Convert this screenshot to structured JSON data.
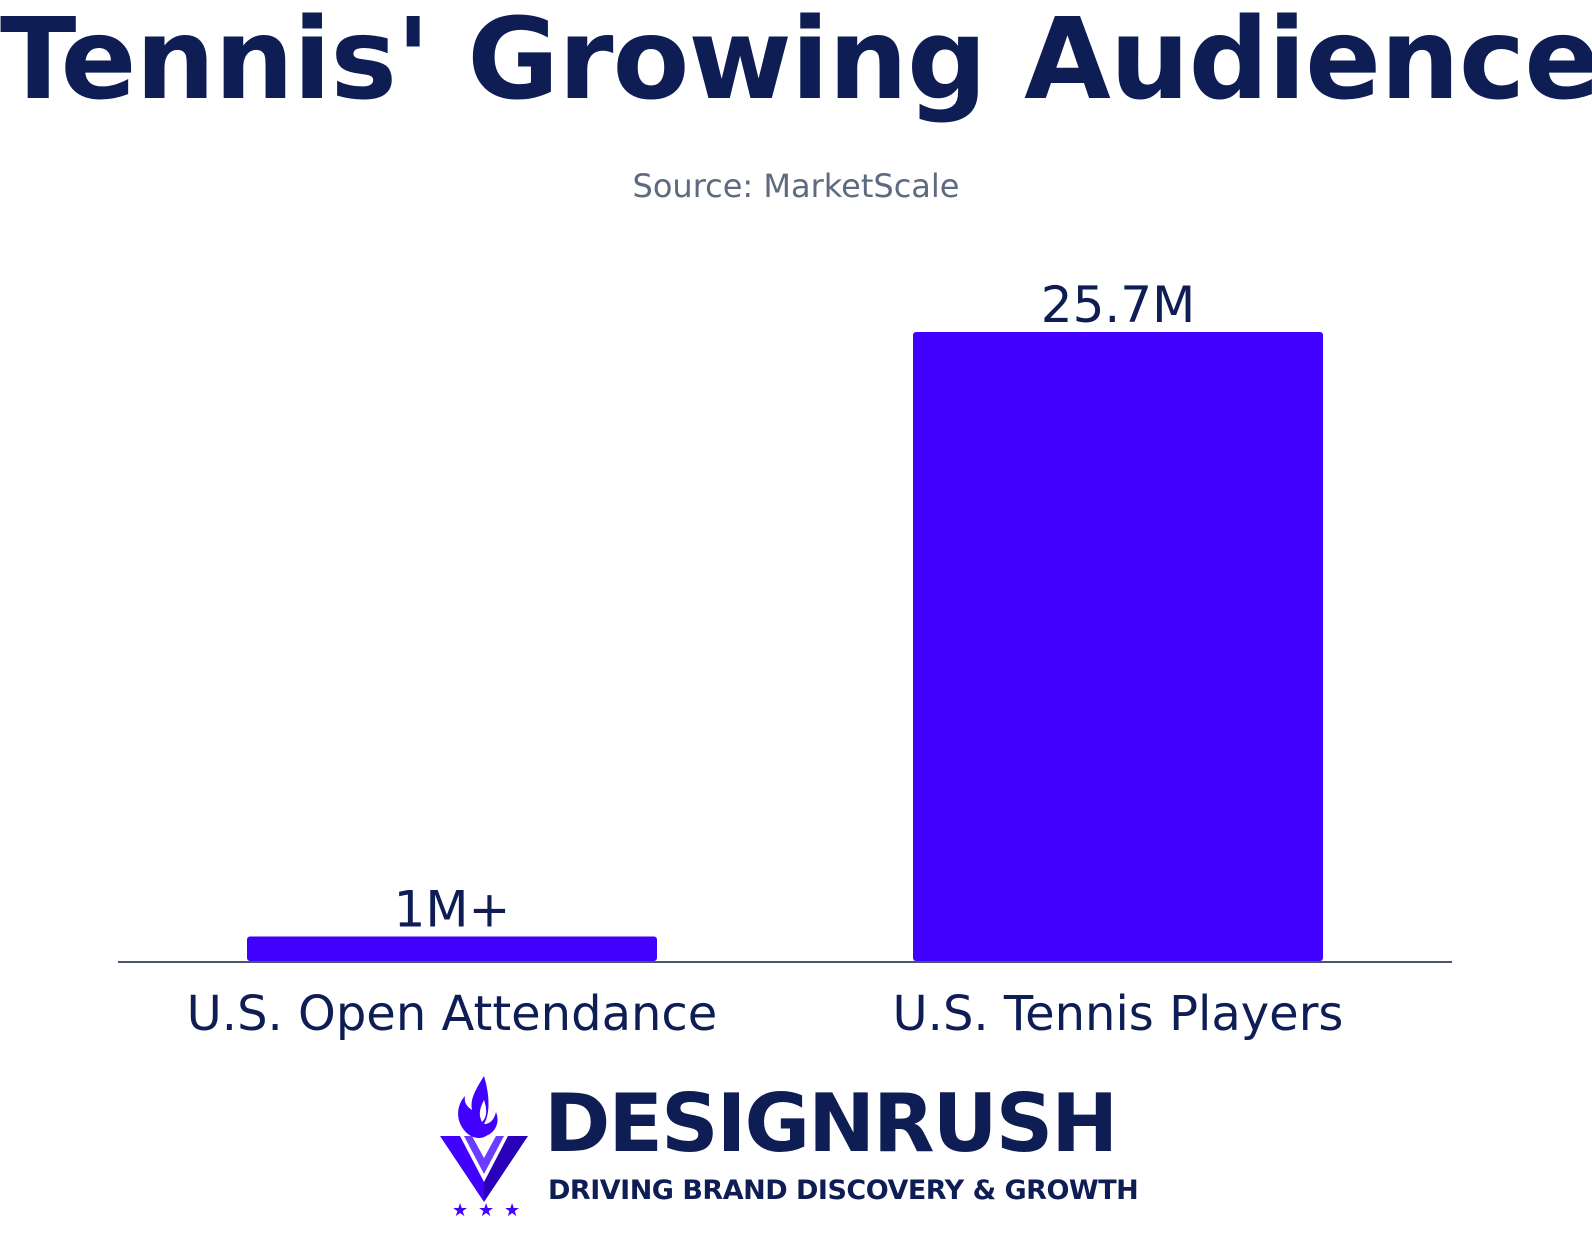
{
  "title": "Tennis' Growing Audience",
  "subtitle": "Source: MarketScale",
  "colors": {
    "bar": "#4200ff",
    "text": "#0e1d54",
    "subtitle": "#5d6a80",
    "axis": "#4a5570"
  },
  "chart_data": {
    "type": "bar",
    "title": "Tennis' Growing Audience",
    "subtitle": "Source: MarketScale",
    "categories": [
      "U.S. Open Attendance",
      "U.S. Tennis Players"
    ],
    "values": [
      1,
      25.7
    ],
    "value_labels": [
      "1M+",
      "25.7M"
    ],
    "ylim": [
      0,
      25.7
    ],
    "grid": false,
    "legend": "none"
  },
  "branding": {
    "name": "DESIGNRUSH",
    "tagline": "DRIVING BRAND DISCOVERY & GROWTH",
    "logo_icon": "flame-shield-icon"
  }
}
